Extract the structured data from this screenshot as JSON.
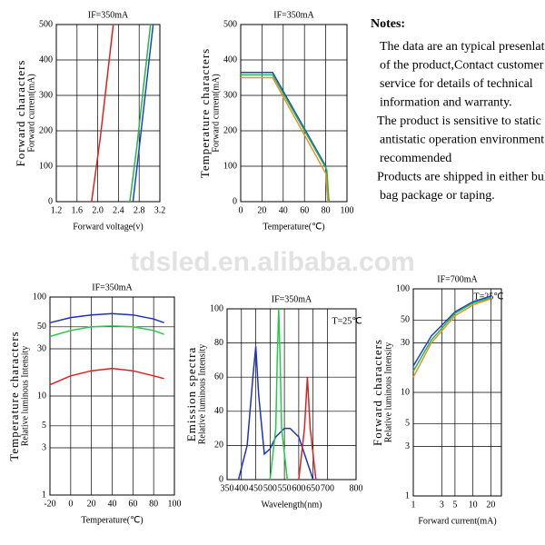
{
  "chart_data": [
    {
      "type": "line",
      "title": "IF=350mA",
      "y_title": "Forward characters",
      "y_label": "Forward current(mA)",
      "x_label": "Forward voltage(v)",
      "xlim": [
        1.2,
        3.2
      ],
      "xticks": [
        1.2,
        1.6,
        {
          "value": 2,
          "label": "2.0"
        },
        2.4,
        2.8,
        3.2
      ],
      "ylim": [
        0,
        500
      ],
      "yticks": [
        0,
        100,
        200,
        300,
        400,
        500
      ],
      "grid": true,
      "series": [
        {
          "color": "#e02020",
          "x": [
            1.88,
            2.05,
            2.3
          ],
          "values": [
            0,
            180,
            500
          ]
        },
        {
          "color": "#22bb44",
          "x": [
            2.62,
            2.75,
            3.02
          ],
          "values": [
            0,
            150,
            500
          ]
        },
        {
          "color": "#2040d0",
          "x": [
            2.68,
            2.8,
            3.07
          ],
          "values": [
            0,
            150,
            500
          ]
        }
      ]
    },
    {
      "type": "line",
      "title": "IF=350mA",
      "y_title": "Temperature characters",
      "y_label": "Forward current(mA)",
      "x_label": "Temperature(℃)",
      "xlim": [
        0,
        100
      ],
      "xticks": [
        0,
        20,
        40,
        60,
        80,
        100
      ],
      "ylim": [
        0,
        500
      ],
      "yticks": [
        0,
        100,
        200,
        300,
        400,
        500
      ],
      "grid": true,
      "series": [
        {
          "color": "#2040d0",
          "x": [
            0,
            30,
            80,
            83
          ],
          "values": [
            365,
            365,
            100,
            0
          ]
        },
        {
          "color": "#22bb44",
          "x": [
            0,
            30,
            81,
            83
          ],
          "values": [
            358,
            358,
            90,
            0
          ]
        },
        {
          "color": "#e8912f",
          "x": [
            0,
            30,
            80,
            82
          ],
          "values": [
            350,
            350,
            80,
            0
          ]
        }
      ]
    },
    {
      "type": "line",
      "title": "IF=350mA",
      "y_title": "Temperature characters",
      "y_label": "Relative luminous Intensity",
      "x_label": "Temperature(℃)",
      "xlim": [
        -20,
        100
      ],
      "xticks": [
        -20,
        0,
        20,
        40,
        60,
        80,
        100
      ],
      "ylim": [
        1,
        100
      ],
      "ylog": true,
      "yticks": [
        1,
        3,
        5,
        10,
        30,
        50,
        100
      ],
      "grid": true,
      "x": [
        -20,
        0,
        20,
        40,
        60,
        80,
        90
      ],
      "series": [
        {
          "color": "#2030b0",
          "values": [
            55,
            62,
            66,
            68,
            66,
            60,
            55
          ]
        },
        {
          "color": "#22cc44",
          "values": [
            40,
            46,
            50,
            51,
            50,
            46,
            42
          ]
        },
        {
          "color": "#e02020",
          "values": [
            13,
            16,
            18,
            19,
            18,
            16,
            15
          ]
        }
      ]
    },
    {
      "type": "line",
      "title": "IF=350mA",
      "annotation": "T=25℃",
      "y_title": "Emission spectra",
      "y_label": "Relative luminous Intensity",
      "x_label": "Wavelength(nm)",
      "xlim": [
        350,
        800
      ],
      "xticks": [
        350,
        400,
        450,
        500,
        550,
        600,
        650,
        700,
        800
      ],
      "ylim": [
        0,
        100
      ],
      "yticks": [
        0,
        20,
        40,
        60,
        80,
        100
      ],
      "grid": true,
      "series": [
        {
          "color": "#2030c0",
          "x": [
            390,
            420,
            440,
            450,
            460,
            480,
            500,
            520,
            550,
            570,
            600,
            630,
            650
          ],
          "values": [
            0,
            20,
            60,
            78,
            50,
            15,
            18,
            25,
            30,
            30,
            25,
            10,
            0
          ]
        },
        {
          "color": "#22cc44",
          "x": [
            500,
            520,
            525,
            530,
            535,
            540,
            560
          ],
          "values": [
            0,
            30,
            70,
            100,
            70,
            30,
            0
          ]
        },
        {
          "color": "#e02020",
          "x": [
            600,
            620,
            630,
            640,
            660
          ],
          "values": [
            0,
            30,
            60,
            30,
            0
          ]
        }
      ]
    },
    {
      "type": "line",
      "title": "IF=700mA",
      "annotation": "T=25℃",
      "y_title": "Forward characters",
      "y_label": "Relative luminous Intensity",
      "x_label": "Forward current(mA)",
      "xlim": [
        1,
        30
      ],
      "xlog": true,
      "xticks": [
        1,
        3,
        5,
        10,
        20
      ],
      "ylim": [
        1,
        100
      ],
      "ylog": true,
      "yticks": [
        1,
        3,
        5,
        10,
        30,
        50,
        100
      ],
      "grid": true,
      "x": [
        1,
        2,
        5,
        10,
        20
      ],
      "series": [
        {
          "color": "#2040d0",
          "values": [
            18,
            35,
            60,
            75,
            85
          ]
        },
        {
          "color": "#22bb44",
          "values": [
            16,
            32,
            58,
            73,
            82
          ]
        },
        {
          "color": "#e8912f",
          "values": [
            14,
            30,
            55,
            70,
            80
          ]
        }
      ]
    }
  ],
  "notes": {
    "title": "Notes:",
    "lines": [
      "The data are an typical presenlation",
      "of the product,Contact customer",
      "service for details of technical",
      "information and warranty.",
      "The product is sensitive to static",
      "antistatic operation environment is",
      "recommended",
      "Products are shipped in either bulk",
      "bag package or taping."
    ]
  },
  "watermark": "tdsled.en.alibaba.com"
}
